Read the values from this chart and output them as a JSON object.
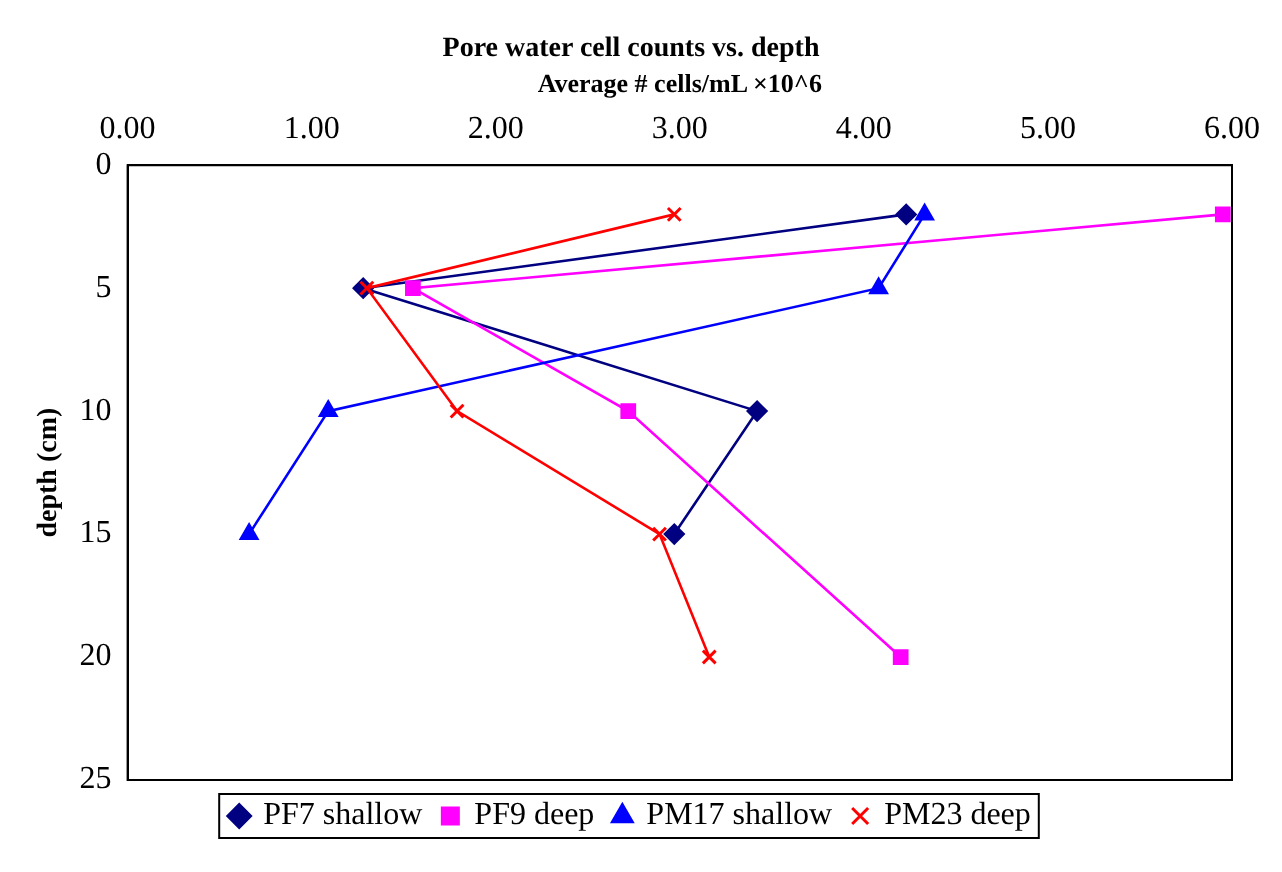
{
  "chart_data": {
    "type": "line",
    "title": "Pore water cell counts vs. depth",
    "xlabel": "Average # cells/mL ×10^6",
    "ylabel": "depth (cm)",
    "xlim": [
      0,
      6
    ],
    "xticks": [
      {
        "value": 0,
        "label": "0.00"
      },
      {
        "value": 1,
        "label": "1.00"
      },
      {
        "value": 2,
        "label": "2.00"
      },
      {
        "value": 3,
        "label": "3.00"
      },
      {
        "value": 4,
        "label": "4.00"
      },
      {
        "value": 5,
        "label": "5.00"
      },
      {
        "value": 6,
        "label": "6.00"
      }
    ],
    "ylim": [
      25,
      0
    ],
    "yticks": [
      0,
      5,
      10,
      15,
      20,
      25
    ],
    "grid": false,
    "legend": "bottom",
    "series": [
      {
        "name": "PF7 shallow",
        "color": "#000080",
        "marker": "diamond",
        "x": [
          4.23,
          1.28,
          3.42,
          2.97
        ],
        "values": [
          2,
          5,
          10,
          15
        ]
      },
      {
        "name": "PF9 deep",
        "color": "#ff00ff",
        "marker": "square",
        "x": [
          5.95,
          1.55,
          2.72,
          4.2
        ],
        "values": [
          2,
          5,
          10,
          20
        ]
      },
      {
        "name": "PM17 shallow",
        "color": "#0000ff",
        "marker": "triangle",
        "x": [
          4.33,
          4.08,
          1.09,
          0.66
        ],
        "values": [
          2,
          5,
          10,
          15
        ]
      },
      {
        "name": "PM23 deep",
        "color": "#ff0000",
        "marker": "cross",
        "x": [
          2.97,
          1.3,
          1.79,
          2.89,
          3.16
        ],
        "values": [
          2,
          5,
          10,
          15,
          20
        ]
      }
    ]
  }
}
